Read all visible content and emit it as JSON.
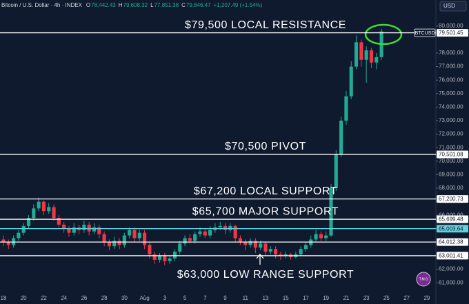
{
  "header": {
    "symbol": "Bitcoin / U.S. Dollar · 4h · INDEX",
    "ohlc": [
      [
        "O",
        "78,442.43"
      ],
      [
        "H",
        "79,608.32"
      ],
      [
        "L",
        "77,851.38"
      ],
      [
        "C",
        "79,646.47"
      ]
    ],
    "change": "+1,207.49 (+1.54%)",
    "currency": "USD"
  },
  "logo": "T.M.S",
  "chart_data": {
    "type": "candlestick",
    "symbol_tag": "BTCUSD",
    "up_color": "#22ab94",
    "down_color": "#f23645",
    "xlim": [
      -0.34,
      42.9
    ],
    "xticks": [
      {
        "value": 0,
        "label": "18"
      },
      {
        "value": 2,
        "label": "20"
      },
      {
        "value": 4,
        "label": "22"
      },
      {
        "value": 6,
        "label": "24"
      },
      {
        "value": 8,
        "label": "26"
      },
      {
        "value": 10,
        "label": "28"
      },
      {
        "value": 12,
        "label": "30"
      },
      {
        "value": 14,
        "label": "Aug"
      },
      {
        "value": 16,
        "label": "3"
      },
      {
        "value": 18,
        "label": "5"
      },
      {
        "value": 20,
        "label": "7"
      },
      {
        "value": 22,
        "label": "9"
      },
      {
        "value": 24,
        "label": "11"
      },
      {
        "value": 26,
        "label": "13"
      },
      {
        "value": 28,
        "label": "15"
      },
      {
        "value": 30,
        "label": "17"
      },
      {
        "value": 32,
        "label": "19"
      },
      {
        "value": 34,
        "label": "21"
      },
      {
        "value": 36,
        "label": "23"
      },
      {
        "value": 38,
        "label": "25"
      },
      {
        "value": 40,
        "label": "27"
      },
      {
        "value": 42,
        "label": "29"
      }
    ],
    "ylim": [
      60600,
      80500
    ],
    "yticks": [
      {
        "value": 61000,
        "label": "61,000.00"
      },
      {
        "value": 62000,
        "label": "62,000.00"
      },
      {
        "value": 63000,
        "label": "63,000.00"
      },
      {
        "value": 64000,
        "label": "64,000.00"
      },
      {
        "value": 65000,
        "label": "65,000.00"
      },
      {
        "value": 66000,
        "label": "66,000.00"
      },
      {
        "value": 67000,
        "label": "67,000.00"
      },
      {
        "value": 68000,
        "label": "68,000.00"
      },
      {
        "value": 69000,
        "label": "69,000.00"
      },
      {
        "value": 70000,
        "label": "70,000.00"
      },
      {
        "value": 71000,
        "label": "71,000.00"
      },
      {
        "value": 72000,
        "label": "72,000.00"
      },
      {
        "value": 73000,
        "label": "73,000.00"
      },
      {
        "value": 74000,
        "label": "74,000.00"
      },
      {
        "value": 75000,
        "label": "75,000.00"
      },
      {
        "value": 76000,
        "label": "76,000.00"
      },
      {
        "value": 77000,
        "label": "77,000.00"
      },
      {
        "value": 78000,
        "label": "78,000.00"
      },
      {
        "value": 80000,
        "label": "80,000.00"
      }
    ],
    "x": [
      0,
      0.5,
      1,
      1.5,
      2,
      2.5,
      3,
      3.5,
      4,
      4.5,
      5,
      5.5,
      6,
      6.5,
      7,
      7.5,
      8,
      8.5,
      9,
      9.5,
      10,
      10.5,
      11,
      11.5,
      12,
      12.5,
      13,
      13.5,
      14,
      14.5,
      15,
      15.5,
      16,
      16.5,
      17,
      17.5,
      18,
      18.5,
      19,
      19.5,
      20,
      20.5,
      21,
      21.5,
      22,
      22.5,
      23,
      23.5,
      24,
      24.5,
      25,
      25.5,
      26,
      26.5,
      27,
      27.5,
      28,
      28.5,
      29,
      29.5,
      30,
      30.5,
      31,
      31.5,
      32,
      32.5,
      33,
      33.5,
      34,
      34.5,
      35,
      35.5,
      36,
      36.5,
      37,
      37.5
    ],
    "open": [
      64200,
      64000,
      63800,
      64300,
      64700,
      65200,
      65800,
      66500,
      67000,
      66300,
      66600,
      65800,
      65300,
      65000,
      64700,
      65100,
      64900,
      65300,
      64800,
      65100,
      64600,
      64000,
      63700,
      64100,
      63800,
      64500,
      64900,
      64300,
      64700,
      63800,
      63100,
      62700,
      63000,
      62600,
      62800,
      63300,
      63900,
      64300,
      64100,
      64600,
      64800,
      64500,
      64900,
      65100,
      65200,
      64900,
      65200,
      64300,
      64000,
      63800,
      64100,
      63600,
      63900,
      63300,
      63500,
      63100,
      63000,
      63100,
      62900,
      63100,
      63500,
      63800,
      64200,
      64600,
      64300,
      64500,
      68000,
      70500,
      73000,
      74800,
      77000,
      78800,
      77500,
      78200,
      77300,
      77700
    ],
    "high": [
      64500,
      64200,
      64500,
      64900,
      65400,
      66000,
      66800,
      67300,
      67100,
      66900,
      66800,
      66000,
      65500,
      65200,
      65400,
      65300,
      65600,
      65500,
      65400,
      65300,
      64800,
      64200,
      64400,
      64300,
      64700,
      65100,
      65100,
      64900,
      64900,
      64000,
      63300,
      63200,
      63200,
      63000,
      63500,
      64100,
      64500,
      64600,
      64800,
      65100,
      65000,
      65200,
      65400,
      65500,
      65400,
      65400,
      65300,
      64500,
      64200,
      64300,
      64300,
      64100,
      64000,
      63700,
      63700,
      63300,
      63300,
      63200,
      63300,
      63700,
      64000,
      64500,
      64900,
      64800,
      64800,
      68300,
      70800,
      73300,
      75200,
      77400,
      79300,
      79000,
      78500,
      78400,
      78000,
      79800
    ],
    "low": [
      63700,
      63500,
      63600,
      64100,
      64500,
      65000,
      65600,
      66300,
      66000,
      66100,
      65600,
      65100,
      64700,
      64400,
      64500,
      64600,
      64700,
      64500,
      64600,
      64300,
      63700,
      63400,
      63500,
      63500,
      63600,
      64300,
      64000,
      64100,
      63500,
      62800,
      62400,
      62500,
      62300,
      62400,
      62600,
      63100,
      63700,
      63900,
      63900,
      64400,
      64300,
      64300,
      64700,
      64900,
      64600,
      64700,
      64000,
      63800,
      63400,
      63600,
      63200,
      63400,
      63000,
      63100,
      62800,
      62700,
      62800,
      62700,
      62800,
      63000,
      63300,
      63600,
      64000,
      64100,
      64100,
      64400,
      67800,
      70300,
      72700,
      74600,
      76800,
      77000,
      75800,
      76900,
      76800,
      77500
    ],
    "close": [
      64000,
      63800,
      64300,
      64700,
      65200,
      65800,
      66500,
      67000,
      66300,
      66600,
      65800,
      65300,
      65000,
      64700,
      65100,
      64900,
      65300,
      64800,
      65100,
      64600,
      64000,
      63700,
      64100,
      63800,
      64500,
      64900,
      64300,
      64700,
      63800,
      63100,
      62700,
      63000,
      62600,
      62800,
      63300,
      63900,
      64300,
      64100,
      64600,
      64800,
      64500,
      64900,
      65100,
      65200,
      64900,
      65200,
      64300,
      64000,
      63800,
      64100,
      63600,
      63900,
      63300,
      63500,
      63100,
      63000,
      63100,
      62900,
      63100,
      63500,
      63800,
      64200,
      64600,
      64300,
      64500,
      68000,
      70500,
      73000,
      74800,
      77000,
      78800,
      77500,
      78200,
      77300,
      77700,
      79600
    ],
    "levels": [
      {
        "value": 79501.45,
        "label": "79,501.45",
        "color": "#ffffff",
        "annotation": "$79,500 LOCAL RESISTANCE"
      },
      {
        "value": 70501.08,
        "label": "70,501.08",
        "color": "#ffffff",
        "annotation": "$70,500 PIVOT"
      },
      {
        "value": 67200.73,
        "label": "67,200.73",
        "color": "#ffffff",
        "annotation": "$67,200 LOCAL SUPPORT"
      },
      {
        "value": 65699.48,
        "label": "65,699.48",
        "color": "#ffffff",
        "annotation": "$65,700 MAJOR SUPPORT"
      },
      {
        "value": 65003.64,
        "label": "65,003.64",
        "color": "#5fd3e0"
      },
      {
        "value": 64012.38,
        "label": "64,012.38",
        "color": "#ffffff"
      },
      {
        "value": 63001.41,
        "label": "63,001.41",
        "color": "#ffffff",
        "annotation": "$63,000 LOW RANGE SUPPORT"
      }
    ]
  }
}
